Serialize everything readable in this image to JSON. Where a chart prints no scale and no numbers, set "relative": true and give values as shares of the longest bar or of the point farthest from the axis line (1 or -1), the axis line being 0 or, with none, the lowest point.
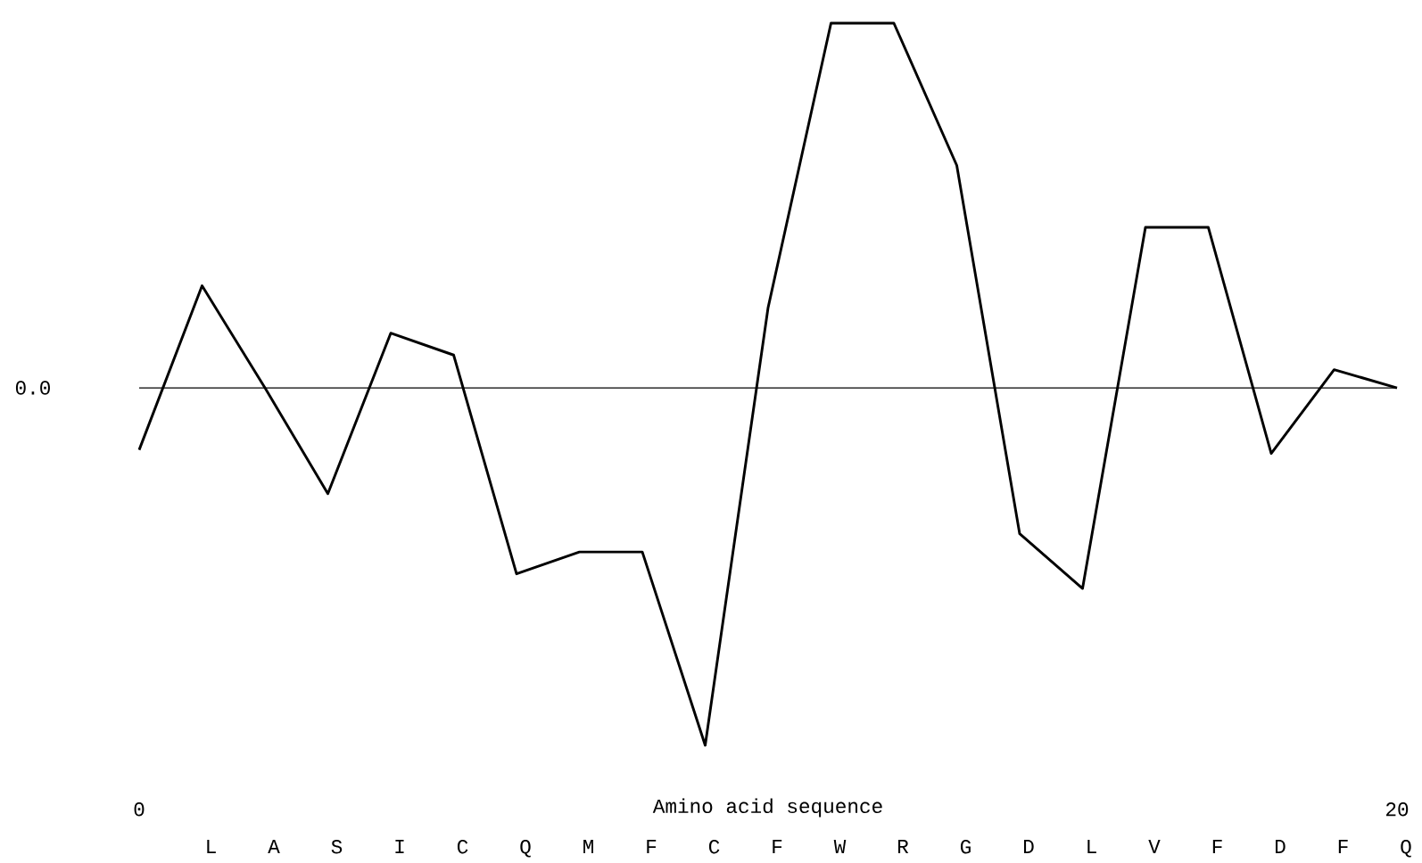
{
  "chart_data": {
    "type": "line",
    "xlabel": "Amino acid sequence",
    "relative": true,
    "color": "#000000",
    "categories": [
      null,
      "L",
      "A",
      "S",
      "I",
      "C",
      "Q",
      "M",
      "F",
      "C",
      "F",
      "W",
      "R",
      "G",
      "D",
      "L",
      "V",
      "F",
      "D",
      "F",
      "Q"
    ],
    "values": [
      -0.17,
      0.28,
      0.0,
      -0.29,
      0.15,
      0.09,
      -0.51,
      -0.45,
      -0.45,
      -0.98,
      0.22,
      1,
      1,
      0.61,
      -0.4,
      -0.55,
      0.44,
      0.44,
      -0.18,
      0.05,
      0.0
    ],
    "x2lim": [
      0,
      20
    ],
    "x2ticks": [
      0,
      20
    ],
    "ref_lines": [
      {
        "axis": "y",
        "value": 0,
        "label": "0.0",
        "color": "#000000"
      }
    ]
  }
}
